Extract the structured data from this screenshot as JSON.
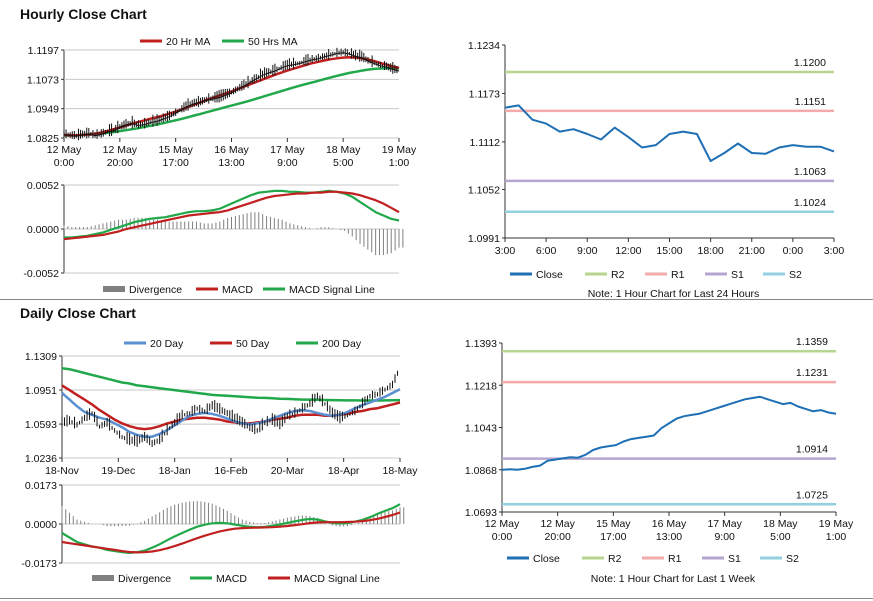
{
  "sections": {
    "hourly_title": "Hourly Close Chart",
    "daily_title": "Daily Close Chart"
  },
  "colors": {
    "ma_short": "#c0201f",
    "ma_long": "#21a84a",
    "close_blue": "#1f6fb5",
    "r2": "#b7d58f",
    "r1": "#f2aaaa",
    "s1": "#b5a6cf",
    "s2": "#92cfdf",
    "divergence": "#808080",
    "ma_200": "#21a84a",
    "ma_20_day": "#5b8fd0"
  },
  "chart_data": [
    {
      "id": "hourly-price",
      "type": "line",
      "legend": [
        "20 Hr MA",
        "50 Hrs MA"
      ],
      "x_tick_labels": [
        [
          "12 May",
          "0:00"
        ],
        [
          "12 May",
          "20:00"
        ],
        [
          "15 May",
          "17:00"
        ],
        [
          "16 May",
          "13:00"
        ],
        [
          "17 May",
          "9:00"
        ],
        [
          "18 May",
          "5:00"
        ],
        [
          "19 May",
          "1:00"
        ]
      ],
      "y_tick_labels": [
        "1.1197",
        "1.1073",
        "1.0949",
        "1.0825"
      ],
      "ylim": [
        1.0825,
        1.1197
      ],
      "close": [
        1.084,
        1.0835,
        1.0832,
        1.0838,
        1.0842,
        1.0835,
        1.084,
        1.085,
        1.0855,
        1.087,
        1.088,
        1.0885,
        1.0878,
        1.0882,
        1.089,
        1.0895,
        1.0905,
        1.0915,
        1.093,
        1.0945,
        1.096,
        1.097,
        1.0975,
        1.0985,
        1.099,
        1.0995,
        1.1005,
        1.1015,
        1.103,
        1.1045,
        1.106,
        1.1075,
        1.109,
        1.11,
        1.1108,
        1.112,
        1.113,
        1.1135,
        1.114,
        1.1148,
        1.1155,
        1.116,
        1.1168,
        1.1175,
        1.1182,
        1.1185,
        1.118,
        1.117,
        1.1165,
        1.115,
        1.114,
        1.113,
        1.1125,
        1.1115,
        1.1108
      ],
      "ma20": [
        1.0838,
        1.0836,
        1.0836,
        1.0838,
        1.084,
        1.0843,
        1.0848,
        1.0855,
        1.0862,
        1.087,
        1.0878,
        1.0886,
        1.0893,
        1.09,
        1.0907,
        1.0913,
        1.092,
        1.0928,
        1.0937,
        1.0946,
        1.0956,
        1.0966,
        1.0976,
        1.0986,
        1.0995,
        1.1004,
        1.1013,
        1.1022,
        1.1032,
        1.1042,
        1.1052,
        1.1062,
        1.1072,
        1.1082,
        1.1092,
        1.1101,
        1.111,
        1.1118,
        1.1126,
        1.1134,
        1.1141,
        1.1147,
        1.1153,
        1.1158,
        1.1162,
        1.1165,
        1.1166,
        1.1165,
        1.1162,
        1.1157,
        1.115,
        1.1142,
        1.1135,
        1.1127,
        1.1121
      ],
      "ma50": [
        1.0836,
        1.0836,
        1.0837,
        1.0838,
        1.084,
        1.0842,
        1.0844,
        1.0847,
        1.085,
        1.0854,
        1.0858,
        1.0862,
        1.0867,
        1.0872,
        1.0877,
        1.0882,
        1.0888,
        1.0894,
        1.09,
        1.0906,
        1.0913,
        1.092,
        1.0927,
        1.0934,
        1.0941,
        1.0948,
        1.0955,
        1.0962,
        1.0969,
        1.0976,
        1.0983,
        1.0991,
        1.0999,
        1.1007,
        1.1015,
        1.1023,
        1.1031,
        1.1039,
        1.1046,
        1.1053,
        1.106,
        1.1067,
        1.1074,
        1.1081,
        1.1088,
        1.1094,
        1.11,
        1.1105,
        1.111,
        1.1114,
        1.1117,
        1.1119,
        1.112,
        1.112,
        1.1119
      ]
    },
    {
      "id": "hourly-macd",
      "type": "line",
      "legend": [
        "Divergence",
        "MACD",
        "MACD Signal Line"
      ],
      "y_tick_labels": [
        "0.0052",
        "0.0000",
        "-0.0052"
      ],
      "ylim": [
        -0.0052,
        0.0052
      ],
      "macd": [
        -0.001,
        -0.001,
        -0.0009,
        -0.0008,
        -0.0006,
        -0.0004,
        -0.0001,
        0.0002,
        0.0005,
        0.0008,
        0.001,
        0.0012,
        0.0013,
        0.0014,
        0.0016,
        0.0018,
        0.002,
        0.0021,
        0.0021,
        0.0022,
        0.0024,
        0.0028,
        0.0032,
        0.0036,
        0.004,
        0.0043,
        0.0044,
        0.0045,
        0.0045,
        0.0044,
        0.0044,
        0.0043,
        0.0043,
        0.0044,
        0.0045,
        0.0044,
        0.0042,
        0.0038,
        0.0032,
        0.0026,
        0.002,
        0.0016,
        0.0012,
        0.001
      ],
      "signal": [
        -0.0012,
        -0.0011,
        -0.001,
        -0.0009,
        -0.0008,
        -0.0007,
        -0.0005,
        -0.0003,
        0.0,
        0.0002,
        0.0004,
        0.0006,
        0.0008,
        0.001,
        0.0012,
        0.0014,
        0.0016,
        0.0017,
        0.0018,
        0.0019,
        0.002,
        0.0022,
        0.0025,
        0.0028,
        0.0031,
        0.0034,
        0.0037,
        0.0039,
        0.004,
        0.0041,
        0.0042,
        0.0042,
        0.0043,
        0.0043,
        0.0044,
        0.0044,
        0.0043,
        0.0042,
        0.004,
        0.0037,
        0.0034,
        0.003,
        0.0025,
        0.002
      ]
    },
    {
      "id": "hourly-pivot",
      "type": "line",
      "legend": [
        "Close",
        "R2",
        "R1",
        "S1",
        "S2"
      ],
      "note": "Note: 1 Hour Chart for Last 24 Hours",
      "x_tick_labels": [
        "3:00",
        "6:00",
        "9:00",
        "12:00",
        "15:00",
        "18:00",
        "21:00",
        "0:00",
        "3:00"
      ],
      "y_tick_labels": [
        "1.1234",
        "1.1173",
        "1.1112",
        "1.1052",
        "1.0991"
      ],
      "ylim": [
        1.0991,
        1.1234
      ],
      "levels": {
        "R2": "1.1200",
        "R1": "1.1151",
        "S1": "1.1063",
        "S2": "1.1024"
      },
      "close": [
        1.1155,
        1.1158,
        1.114,
        1.1135,
        1.1125,
        1.1128,
        1.1122,
        1.1115,
        1.113,
        1.1118,
        1.1105,
        1.1108,
        1.1122,
        1.1125,
        1.1122,
        1.1088,
        1.1098,
        1.111,
        1.1098,
        1.1097,
        1.1105,
        1.1108,
        1.1106,
        1.1106,
        1.11
      ]
    },
    {
      "id": "daily-price",
      "type": "line",
      "legend": [
        "20 Day",
        "50 Day",
        "200 Day"
      ],
      "x_tick_labels": [
        "18-Nov",
        "19-Dec",
        "18-Jan",
        "16-Feb",
        "20-Mar",
        "18-Apr",
        "18-May"
      ],
      "y_tick_labels": [
        "1.1309",
        "1.0951",
        "1.0593",
        "1.0236"
      ],
      "ylim": [
        1.0236,
        1.1309
      ],
      "close": [
        1.06,
        1.062,
        1.058,
        1.065,
        1.07,
        1.056,
        1.06,
        1.052,
        1.045,
        1.042,
        1.04,
        1.045,
        1.038,
        1.042,
        1.052,
        1.06,
        1.068,
        1.07,
        1.075,
        1.072,
        1.078,
        1.074,
        1.07,
        1.065,
        1.06,
        1.055,
        1.052,
        1.06,
        1.063,
        1.058,
        1.067,
        1.07,
        1.075,
        1.08,
        1.088,
        1.08,
        1.07,
        1.065,
        1.068,
        1.072,
        1.08,
        1.088,
        1.09,
        1.095,
        1.1,
        1.118
      ],
      "ma20": [
        1.092,
        1.085,
        1.078,
        1.072,
        1.069,
        1.066,
        1.064,
        1.06,
        1.056,
        1.051,
        1.048,
        1.046,
        1.046,
        1.049,
        1.053,
        1.058,
        1.063,
        1.068,
        1.07,
        1.071,
        1.07,
        1.068,
        1.065,
        1.062,
        1.06,
        1.059,
        1.06,
        1.062,
        1.065,
        1.068,
        1.071,
        1.073,
        1.074,
        1.073,
        1.071,
        1.069,
        1.068,
        1.069,
        1.072,
        1.076,
        1.079,
        1.082,
        1.085,
        1.088,
        1.092,
        1.096
      ],
      "ma50": [
        1.1,
        1.095,
        1.09,
        1.085,
        1.08,
        1.074,
        1.069,
        1.064,
        1.06,
        1.057,
        1.055,
        1.054,
        1.055,
        1.057,
        1.06,
        1.062,
        1.064,
        1.065,
        1.066,
        1.066,
        1.065,
        1.064,
        1.062,
        1.061,
        1.06,
        1.06,
        1.061,
        1.062,
        1.064,
        1.065,
        1.066,
        1.068,
        1.069,
        1.069,
        1.069,
        1.068,
        1.068,
        1.069,
        1.07,
        1.072,
        1.073,
        1.075,
        1.076,
        1.078,
        1.08,
        1.082
      ],
      "ma200": [
        1.118,
        1.117,
        1.115,
        1.113,
        1.111,
        1.109,
        1.107,
        1.105,
        1.103,
        1.102,
        1.1,
        1.099,
        1.098,
        1.097,
        1.096,
        1.095,
        1.094,
        1.093,
        1.092,
        1.091,
        1.09,
        1.0895,
        1.089,
        1.0885,
        1.088,
        1.0875,
        1.087,
        1.0868,
        1.0865,
        1.086,
        1.0858,
        1.0855,
        1.085,
        1.085,
        1.0848,
        1.0846,
        1.0845,
        1.0843,
        1.0842,
        1.0842,
        1.0841,
        1.0841,
        1.0841,
        1.0842,
        1.0843,
        1.0845
      ]
    },
    {
      "id": "daily-macd",
      "type": "line",
      "legend": [
        "Divergence",
        "MACD",
        "MACD Signal Line"
      ],
      "y_tick_labels": [
        "0.0173",
        "0.0000",
        "-0.0173"
      ],
      "ylim": [
        -0.0173,
        0.0173
      ],
      "macd": [
        -0.004,
        -0.006,
        -0.008,
        -0.009,
        -0.01,
        -0.0105,
        -0.0115,
        -0.012,
        -0.0125,
        -0.0128,
        -0.0125,
        -0.0118,
        -0.0105,
        -0.009,
        -0.0072,
        -0.0055,
        -0.004,
        -0.0025,
        -0.0012,
        -0.0003,
        0.0003,
        0.0005,
        0.0003,
        -0.0002,
        -0.0008,
        -0.0012,
        -0.0014,
        -0.0013,
        -0.0008,
        -0.0002,
        0.0005,
        0.0012,
        0.0018,
        0.0022,
        0.002,
        0.0012,
        0.0005,
        0.0002,
        0.0004,
        0.001,
        0.0018,
        0.003,
        0.0045,
        0.0058,
        0.007,
        0.0088
      ],
      "signal": [
        -0.008,
        -0.0085,
        -0.009,
        -0.0095,
        -0.01,
        -0.0105,
        -0.011,
        -0.0115,
        -0.012,
        -0.0124,
        -0.0126,
        -0.0125,
        -0.0122,
        -0.0116,
        -0.0108,
        -0.0098,
        -0.0087,
        -0.0075,
        -0.0063,
        -0.0052,
        -0.0042,
        -0.0033,
        -0.0026,
        -0.0021,
        -0.0018,
        -0.0017,
        -0.0016,
        -0.0015,
        -0.0014,
        -0.0012,
        -0.0009,
        -0.0005,
        -0.0001,
        0.0004,
        0.0007,
        0.0008,
        0.0008,
        0.0008,
        0.0009,
        0.001,
        0.0013,
        0.0017,
        0.0023,
        0.0031,
        0.004,
        0.0051
      ]
    },
    {
      "id": "daily-pivot",
      "type": "line",
      "legend": [
        "Close",
        "R2",
        "R1",
        "S1",
        "S2"
      ],
      "note": "Note: 1 Hour Chart for Last 1 Week",
      "x_tick_labels": [
        [
          "12 May",
          "0:00"
        ],
        [
          "12 May",
          "20:00"
        ],
        [
          "15 May",
          "17:00"
        ],
        [
          "16 May",
          "13:00"
        ],
        [
          "17 May",
          "9:00"
        ],
        [
          "18 May",
          "5:00"
        ],
        [
          "19 May",
          "1:00"
        ]
      ],
      "y_tick_labels": [
        "1.1393",
        "1.1218",
        "1.1043",
        "1.0868",
        "1.0693"
      ],
      "ylim": [
        1.0693,
        1.1393
      ],
      "levels": {
        "R2": "1.1359",
        "R1": "1.1231",
        "S1": "1.0914",
        "S2": "1.0725"
      },
      "close": [
        1.0868,
        1.087,
        1.0868,
        1.0872,
        1.088,
        1.0885,
        1.0905,
        1.091,
        1.0915,
        1.092,
        1.0918,
        1.093,
        1.095,
        1.096,
        1.0965,
        1.097,
        1.0985,
        1.0995,
        1.1,
        1.1005,
        1.101,
        1.104,
        1.106,
        1.108,
        1.109,
        1.1095,
        1.11,
        1.111,
        1.112,
        1.113,
        1.114,
        1.115,
        1.116,
        1.1165,
        1.117,
        1.116,
        1.115,
        1.114,
        1.1145,
        1.113,
        1.112,
        1.111,
        1.1115,
        1.1105,
        1.11
      ]
    }
  ]
}
